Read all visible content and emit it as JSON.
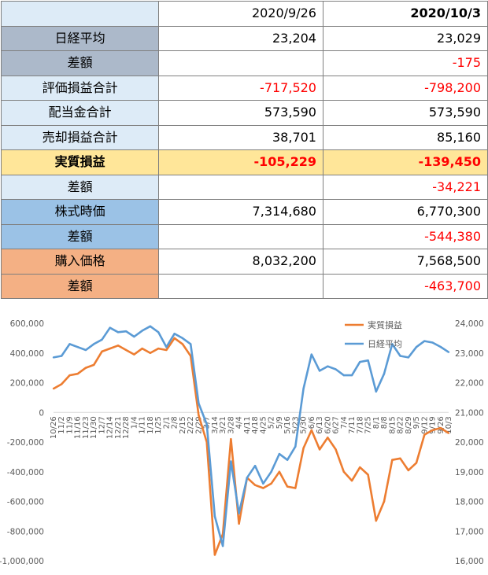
{
  "table": {
    "header": [
      "",
      "2020/9/26",
      "2020/10/3"
    ],
    "rows": [
      {
        "label": "日経平均",
        "v1": "23,204",
        "v2": "23,029",
        "bg": "#acb9ca",
        "v1neg": false,
        "v2neg": false,
        "bold": false
      },
      {
        "label": "差額",
        "v1": "",
        "v2": "-175",
        "bg": "#acb9ca",
        "v1neg": false,
        "v2neg": true,
        "bold": false
      },
      {
        "label": "評価損益合計",
        "v1": "-717,520",
        "v2": "-798,200",
        "bg": "#ddebf7",
        "v1neg": true,
        "v2neg": true,
        "bold": false
      },
      {
        "label": "配当金合計",
        "v1": "573,590",
        "v2": "573,590",
        "bg": "#ddebf7",
        "v1neg": false,
        "v2neg": false,
        "bold": false
      },
      {
        "label": "売却損益合計",
        "v1": "38,701",
        "v2": "85,160",
        "bg": "#ddebf7",
        "v1neg": false,
        "v2neg": false,
        "bold": false
      },
      {
        "label": "実質損益",
        "v1": "-105,229",
        "v2": "-139,450",
        "bg": "#ffe699",
        "v1neg": true,
        "v2neg": true,
        "bold": true
      },
      {
        "label": "差額",
        "v1": "",
        "v2": "-34,221",
        "bg": "#ddebf7",
        "v1neg": false,
        "v2neg": true,
        "bold": false
      },
      {
        "label": "株式時価",
        "v1": "7,314,680",
        "v2": "6,770,300",
        "bg": "#9bc2e6",
        "v1neg": false,
        "v2neg": false,
        "bold": false
      },
      {
        "label": "差額",
        "v1": "",
        "v2": "-544,380",
        "bg": "#9bc2e6",
        "v1neg": false,
        "v2neg": true,
        "bold": false
      },
      {
        "label": "購入価格",
        "v1": "8,032,200",
        "v2": "7,568,500",
        "bg": "#f4b084",
        "v1neg": false,
        "v2neg": false,
        "bold": false
      },
      {
        "label": "差額",
        "v1": "",
        "v2": "-463,700",
        "bg": "#f4b084",
        "v1neg": false,
        "v2neg": true,
        "bold": false
      }
    ],
    "header_bg": "#ddebf7"
  },
  "chart_data": {
    "type": "line",
    "x": [
      "10/26",
      "11/2",
      "11/9",
      "11/16",
      "11/23",
      "11/30",
      "12/7",
      "12/14",
      "12/21",
      "12/28",
      "1/4",
      "1/11",
      "1/18",
      "1/25",
      "2/1",
      "2/8",
      "2/15",
      "2/22",
      "2/29",
      "3/7",
      "3/14",
      "3/21",
      "3/28",
      "4/4",
      "4/11",
      "4/18",
      "4/25",
      "5/2",
      "5/9",
      "5/16",
      "5/23",
      "5/30",
      "6/6",
      "6/13",
      "6/20",
      "6/27",
      "7/4",
      "7/11",
      "7/18",
      "7/25",
      "8/1",
      "8/8",
      "8/15",
      "8/22",
      "8/29",
      "9/5",
      "9/12",
      "9/19",
      "9/26",
      "10/3"
    ],
    "xticklabels": [
      "10/26",
      "11/2",
      "11/9",
      "11/16",
      "11/23",
      "11/30",
      "12/7",
      "12/14",
      "12/21",
      "12/28",
      "1/4",
      "1/11",
      "1/18",
      "1/25",
      "2/1",
      "2/8",
      "2/15",
      "2/22",
      "2/29",
      "3/7",
      "3/14",
      "3/21",
      "3/28",
      "4/4",
      "4/11",
      "4/18",
      "4/25",
      "5/2",
      "5/9",
      "5/16",
      "5/23",
      "5/30",
      "6/6",
      "6/13",
      "6/20",
      "6/27",
      "7/4",
      "7/11",
      "7/18",
      "7/25",
      "8/1",
      "8/8",
      "8/15",
      "8/22",
      "8/29",
      "9/5",
      "9/12",
      "9/19",
      "9/26",
      "10/3"
    ],
    "series": [
      {
        "name": "実質損益",
        "axis": "left",
        "color": "#ed7d31",
        "values": [
          160000,
          190000,
          250000,
          260000,
          300000,
          320000,
          410000,
          430000,
          450000,
          420000,
          390000,
          430000,
          400000,
          430000,
          420000,
          500000,
          460000,
          380000,
          -20000,
          -200000,
          -960000,
          -820000,
          -180000,
          -750000,
          -440000,
          -490000,
          -510000,
          -480000,
          -400000,
          -500000,
          -510000,
          -240000,
          -120000,
          -250000,
          -170000,
          -250000,
          -400000,
          -460000,
          -370000,
          -420000,
          -730000,
          -600000,
          -320000,
          -310000,
          -390000,
          -340000,
          -150000,
          -120000,
          -105229,
          -139450
        ]
      },
      {
        "name": "日経平均",
        "axis": "right",
        "color": "#5b9bd5",
        "values": [
          22850,
          22900,
          23300,
          23200,
          23100,
          23300,
          23450,
          23850,
          23700,
          23730,
          23550,
          23750,
          23900,
          23700,
          23200,
          23650,
          23500,
          23300,
          21300,
          20600,
          17500,
          16500,
          19350,
          17600,
          18800,
          19200,
          18600,
          19000,
          19600,
          19400,
          19850,
          21800,
          22950,
          22400,
          22550,
          22450,
          22250,
          22250,
          22700,
          22750,
          21700,
          22300,
          23300,
          22900,
          22850,
          23200,
          23400,
          23350,
          23204,
          23029
        ]
      }
    ],
    "yleft": {
      "min": -1000000,
      "max": 600000,
      "step": 200000,
      "ticks": [
        "-1,000,000",
        "-800,000",
        "-600,000",
        "-400,000",
        "-200,000",
        "0",
        "200,000",
        "400,000",
        "600,000"
      ]
    },
    "yright": {
      "min": 16000,
      "max": 24000,
      "step": 1000,
      "ticks": [
        "16,000",
        "17,000",
        "18,000",
        "19,000",
        "20,000",
        "21,000",
        "22,000",
        "23,000",
        "24,000"
      ]
    },
    "legend_position": "top-right",
    "grid": false
  }
}
